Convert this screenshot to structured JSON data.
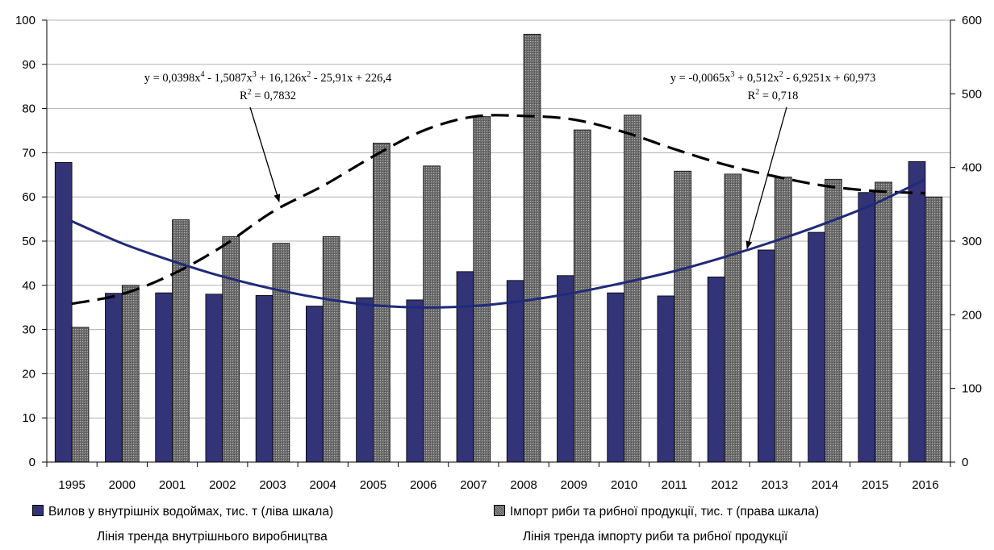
{
  "chart_data": {
    "type": "bar",
    "title": "",
    "categories": [
      "1995",
      "2000",
      "2001",
      "2002",
      "2003",
      "2004",
      "2005",
      "2006",
      "2007",
      "2008",
      "2009",
      "2010",
      "2011",
      "2012",
      "2013",
      "2014",
      "2015",
      "2016"
    ],
    "y_left": {
      "min": 0,
      "max": 100,
      "ticks": [
        0,
        10,
        20,
        30,
        40,
        50,
        60,
        70,
        80,
        90,
        100
      ]
    },
    "y_right": {
      "min": 0,
      "max": 600,
      "ticks": [
        0,
        100,
        200,
        300,
        400,
        500,
        600
      ]
    },
    "grid": "horizontal",
    "series": [
      {
        "name": "Вилов у внутрішніх водоймах, тис. т (ліва шкала)",
        "axis": "left",
        "color": "#333377",
        "values": [
          67.8,
          38.2,
          38.3,
          38.0,
          37.7,
          35.3,
          37.2,
          36.7,
          43.1,
          41.1,
          42.2,
          38.3,
          37.6,
          41.9,
          48.0,
          52.0,
          61.0,
          68.0
        ]
      },
      {
        "name": "Імпорт риби та рибної продукції, тис. т (права шкала)",
        "axis": "right",
        "color": "#808080",
        "values": [
          183,
          240,
          329,
          306,
          297,
          306,
          433,
          402,
          469,
          581,
          451,
          471,
          395,
          391,
          387,
          384,
          380,
          360
        ]
      }
    ],
    "trendlines": [
      {
        "name": "Лінія тренда внутрішнього виробництва",
        "style": "solid",
        "color": "#1f2a7a",
        "axis": "left",
        "values": [
          54.5,
          49.5,
          45.5,
          42.0,
          39.2,
          37.0,
          35.5,
          35.0,
          35.3,
          36.5,
          38.3,
          40.6,
          43.2,
          46.4,
          50.0,
          54.0,
          58.5,
          64.0
        ]
      },
      {
        "name": "Лінія тренда імпорту риби та рибної продукції",
        "style": "dashed",
        "color": "#000000",
        "axis": "right",
        "values": [
          215,
          228,
          255,
          293,
          340,
          375,
          415,
          450,
          469,
          470,
          465,
          448,
          425,
          404,
          388,
          375,
          368,
          365
        ]
      }
    ],
    "annotations": [
      {
        "id": "import-trend-equation",
        "equation_parts": [
          "y = 0,0398x",
          "4",
          " - 1,5087x",
          "3",
          " + 16,126x",
          "2",
          " - 25,91x + 226,4"
        ],
        "r2_parts": [
          "R",
          "2",
          " = 0,7832"
        ],
        "points_to": "dashed trend at 2004"
      },
      {
        "id": "catch-trend-equation",
        "equation_parts": [
          "y = -0,0065x",
          "3",
          " + 0,512x",
          "2",
          " - 6,9251x + 60,973"
        ],
        "r2_parts": [
          "R",
          "2",
          " = 0,718"
        ],
        "points_to": "solid trend at 2013"
      }
    ]
  },
  "legend": {
    "item1_label": "Вилов у внутрішніх водоймах, тис. т (ліва шкала)",
    "item2_label": "Імпорт риби та рибної продукції, тис. т (права шкала)",
    "caption1": "Лінія тренда внутрішнього виробництва",
    "caption2": "Лінія тренда імпорту риби та рибної продукції"
  }
}
